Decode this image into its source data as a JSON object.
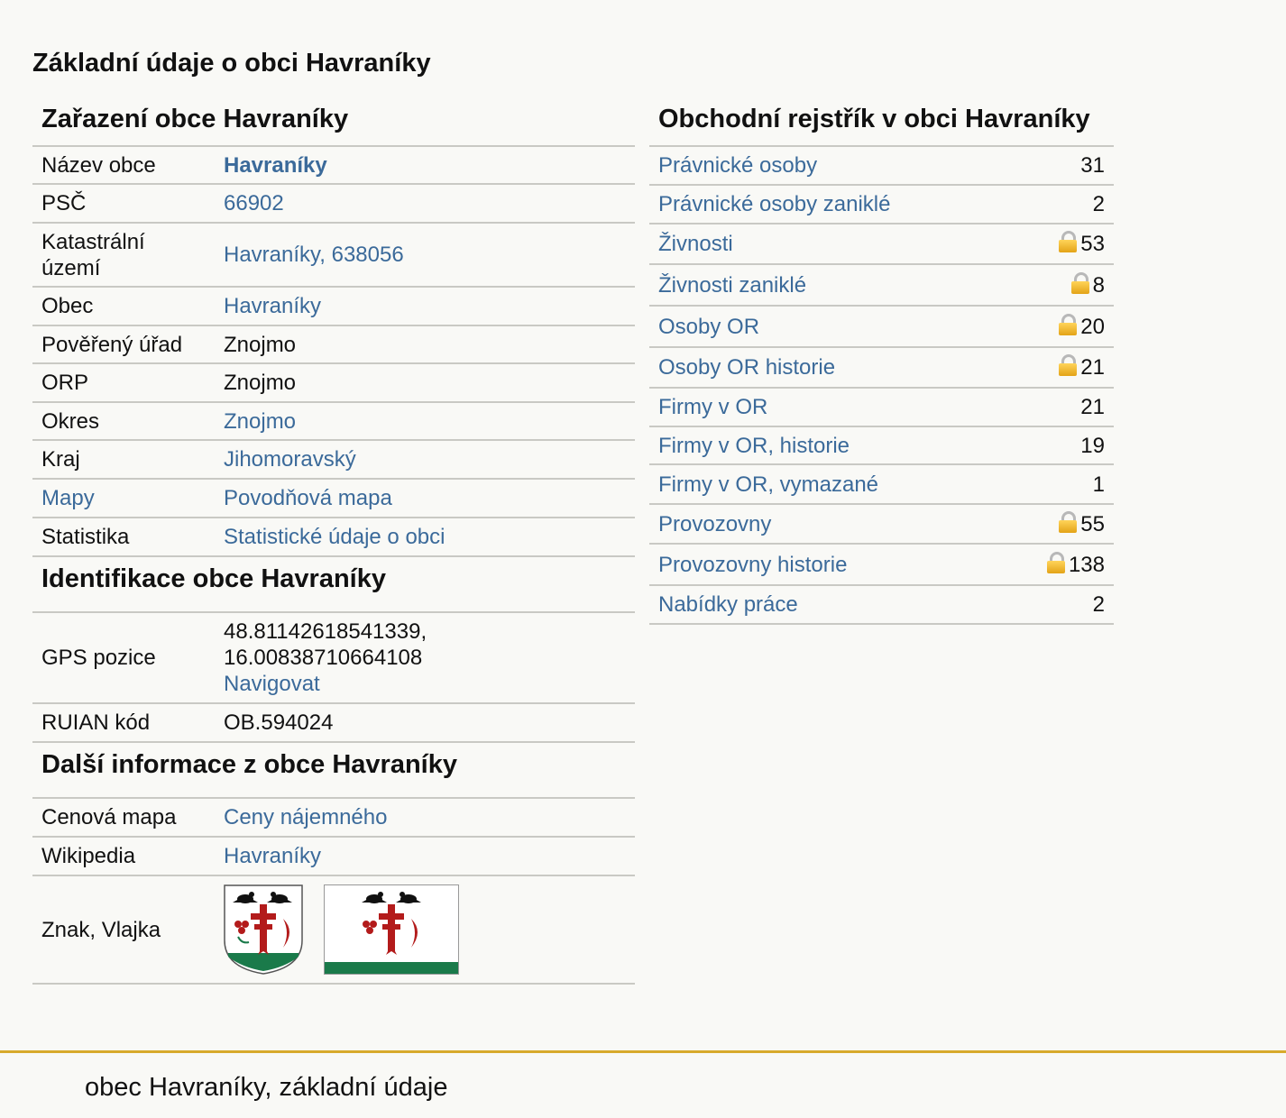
{
  "page_title": "Základní údaje o obci Havraníky",
  "classification": {
    "title": "Zařazení obce Havraníky",
    "rows": [
      {
        "label": "Název obce",
        "value": "Havraníky"
      },
      {
        "label": "PSČ",
        "value": "66902"
      },
      {
        "label": "Katastrální území",
        "value": "Havraníky, 638056"
      },
      {
        "label": "Obec",
        "value": "Havraníky"
      },
      {
        "label": "Pověřený úřad",
        "value": "Znojmo"
      },
      {
        "label": "ORP",
        "value": "Znojmo"
      },
      {
        "label": "Okres",
        "value": "Znojmo"
      },
      {
        "label": "Kraj",
        "value": "Jihomoravský"
      },
      {
        "label": "Mapy",
        "value": "Povodňová mapa"
      },
      {
        "label": "Statistika",
        "value": "Statistické údaje o obci"
      }
    ]
  },
  "identification": {
    "title": "Identifikace obce Havraníky",
    "gps_label": "GPS pozice",
    "gps_lat": "48.81142618541339,",
    "gps_lon": "16.00838710664108",
    "navigate": "Navigovat",
    "ruian_label": "RUIAN kód",
    "ruian_value": "OB.594024"
  },
  "more": {
    "title": "Další informace z obce Havraníky",
    "price_label": "Cenová mapa",
    "price_value": "Ceny nájemného",
    "wiki_label": "Wikipedia",
    "wiki_value": "Havraníky",
    "emblem_label": "Znak, Vlajka"
  },
  "register": {
    "title": "Obchodní rejstřík v obci Havraníky",
    "rows": [
      {
        "label": "Právnické osoby",
        "count": "31",
        "locked": false
      },
      {
        "label": "Právnické osoby zaniklé",
        "count": "2",
        "locked": false
      },
      {
        "label": "Živnosti",
        "count": "53",
        "locked": true
      },
      {
        "label": "Živnosti zaniklé",
        "count": "8",
        "locked": true
      },
      {
        "label": "Osoby OR",
        "count": "20",
        "locked": true
      },
      {
        "label": "Osoby OR historie",
        "count": "21",
        "locked": true
      },
      {
        "label": "Firmy v OR",
        "count": "21",
        "locked": false
      },
      {
        "label": "Firmy v OR, historie",
        "count": "19",
        "locked": false
      },
      {
        "label": "Firmy v OR, vymazané",
        "count": "1",
        "locked": false
      },
      {
        "label": "Provozovny",
        "count": "55",
        "locked": true
      },
      {
        "label": "Provozovny historie",
        "count": "138",
        "locked": true
      },
      {
        "label": "Nabídky práce",
        "count": "2",
        "locked": false
      }
    ]
  },
  "footer": "obec Havraníky, základní údaje",
  "colors": {
    "link": "#3b6a9a",
    "footer_rule": "#d8aa2c",
    "background": "#f9f9f6"
  },
  "icons": {
    "lock": "lock-icon",
    "coat_of_arms": "coat-of-arms",
    "flag": "flag"
  }
}
